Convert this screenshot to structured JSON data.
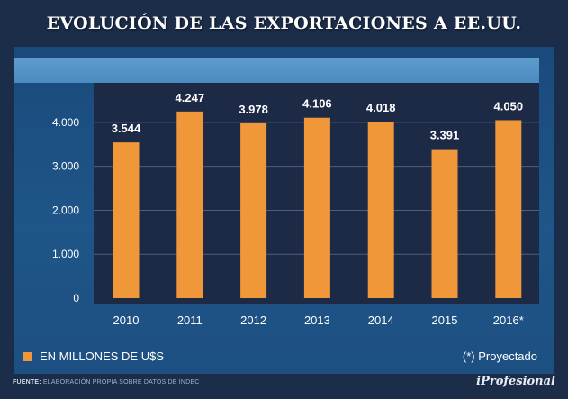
{
  "title": "EVOLUCIÓN DE LAS EXPORTACIONES A EE.UU.",
  "legend_label": "EN MILLONES DE U$S",
  "note": "(*) Proyectado",
  "source_label": "FUENTE:",
  "source_text": "ELABORACIÓN PROPIA SOBRE DATOS DE INDEC",
  "brand": "iProfesional",
  "colors": {
    "bar": "#f0973a",
    "grid": "#4a5e80",
    "plot_bg": "#1c2a45",
    "text": "#ffffff"
  },
  "chart_data": {
    "type": "bar",
    "title": "EVOLUCIÓN DE LAS EXPORTACIONES A EE.UU.",
    "categories": [
      "2010",
      "2011",
      "2012",
      "2013",
      "2014",
      "2015",
      "2016*"
    ],
    "values": [
      3544,
      4247,
      3978,
      4106,
      4018,
      3391,
      4050
    ],
    "value_labels": [
      "3.544",
      "4.247",
      "3.978",
      "4.106",
      "4.018",
      "3.391",
      "4.050"
    ],
    "yticks": [
      0,
      1000,
      2000,
      3000,
      4000
    ],
    "ytick_labels": [
      "0",
      "1.000",
      "2.000",
      "3.000",
      "4.000"
    ],
    "ylim": [
      0,
      4900
    ],
    "xlabel": "",
    "ylabel": "EN MILLONES DE U$S",
    "grid": true
  }
}
